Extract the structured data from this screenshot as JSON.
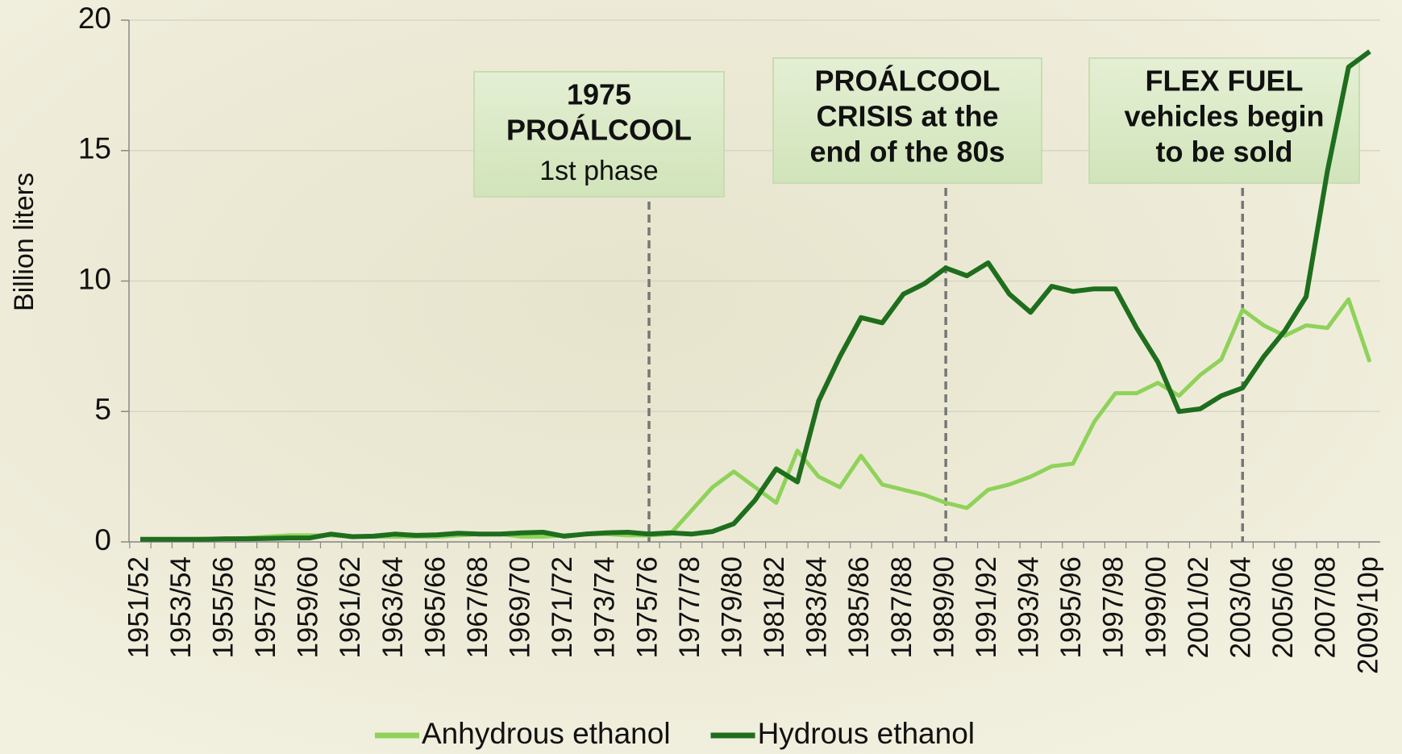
{
  "chart_data": {
    "type": "line",
    "ylabel": "Billion liters",
    "categories": [
      "1951/52",
      null,
      "1953/54",
      null,
      "1955/56",
      null,
      "1957/58",
      null,
      "1959/60",
      null,
      "1961/62",
      null,
      "1963/64",
      null,
      "1965/66",
      null,
      "1967/68",
      null,
      "1969/70",
      null,
      "1971/72",
      null,
      "1973/74",
      null,
      "1975/76",
      null,
      "1977/78",
      null,
      "1979/80",
      null,
      "1981/82",
      null,
      "1983/84",
      null,
      "1985/86",
      null,
      "1987/88",
      null,
      "1989/90",
      null,
      "1991/92",
      null,
      "1993/94",
      null,
      "1995/96",
      null,
      "1997/98",
      null,
      "1999/00",
      null,
      "2001/02",
      null,
      "2003/04",
      null,
      "2005/06",
      null,
      "2007/08",
      null,
      "2009/10p"
    ],
    "series": [
      {
        "name": "Anhydrous ethanol",
        "color": "#8fd25a",
        "values": [
          0.1,
          0.1,
          0.1,
          0.12,
          0.12,
          0.15,
          0.2,
          0.25,
          0.25,
          0.25,
          0.2,
          0.2,
          0.2,
          0.2,
          0.2,
          0.25,
          0.3,
          0.3,
          0.2,
          0.2,
          0.25,
          0.3,
          0.3,
          0.25,
          0.25,
          0.3,
          1.2,
          2.1,
          2.7,
          2.1,
          1.5,
          3.5,
          2.5,
          2.1,
          3.3,
          2.2,
          2.0,
          1.8,
          1.5,
          1.3,
          2.0,
          2.2,
          2.5,
          2.9,
          3.0,
          4.6,
          5.7,
          5.7,
          6.1,
          5.6,
          6.4,
          7.0,
          8.9,
          8.3,
          7.9,
          8.3,
          8.2,
          9.3,
          6.9
        ]
      },
      {
        "name": "Hydrous ethanol",
        "color": "#1e6e1e",
        "values": [
          0.1,
          0.1,
          0.1,
          0.1,
          0.12,
          0.12,
          0.13,
          0.15,
          0.15,
          0.3,
          0.2,
          0.22,
          0.3,
          0.25,
          0.27,
          0.33,
          0.3,
          0.3,
          0.35,
          0.37,
          0.22,
          0.3,
          0.35,
          0.37,
          0.3,
          0.35,
          0.3,
          0.4,
          0.7,
          1.6,
          2.8,
          2.3,
          5.4,
          7.1,
          8.6,
          8.4,
          9.5,
          9.9,
          10.5,
          10.2,
          10.7,
          9.5,
          8.8,
          9.8,
          9.6,
          9.7,
          9.7,
          8.2,
          6.9,
          5.0,
          5.1,
          5.6,
          5.9,
          7.1,
          8.1,
          9.4,
          14.2,
          18.2,
          18.8
        ]
      }
    ],
    "ylim": [
      0,
      20
    ],
    "yticks": [
      0,
      5,
      10,
      15,
      20
    ],
    "grid": true,
    "annotations": [
      {
        "bold": [
          "1975",
          "PROÁLCOOL"
        ],
        "plain": [
          "1st phase"
        ]
      },
      {
        "bold": [
          "PROÁLCOOL",
          "CRISIS at the",
          "end of the 80s"
        ],
        "plain": []
      },
      {
        "bold": [
          "FLEX FUEL",
          "vehicles begin",
          "to be sold"
        ],
        "plain": []
      }
    ],
    "legend": "bottom"
  }
}
